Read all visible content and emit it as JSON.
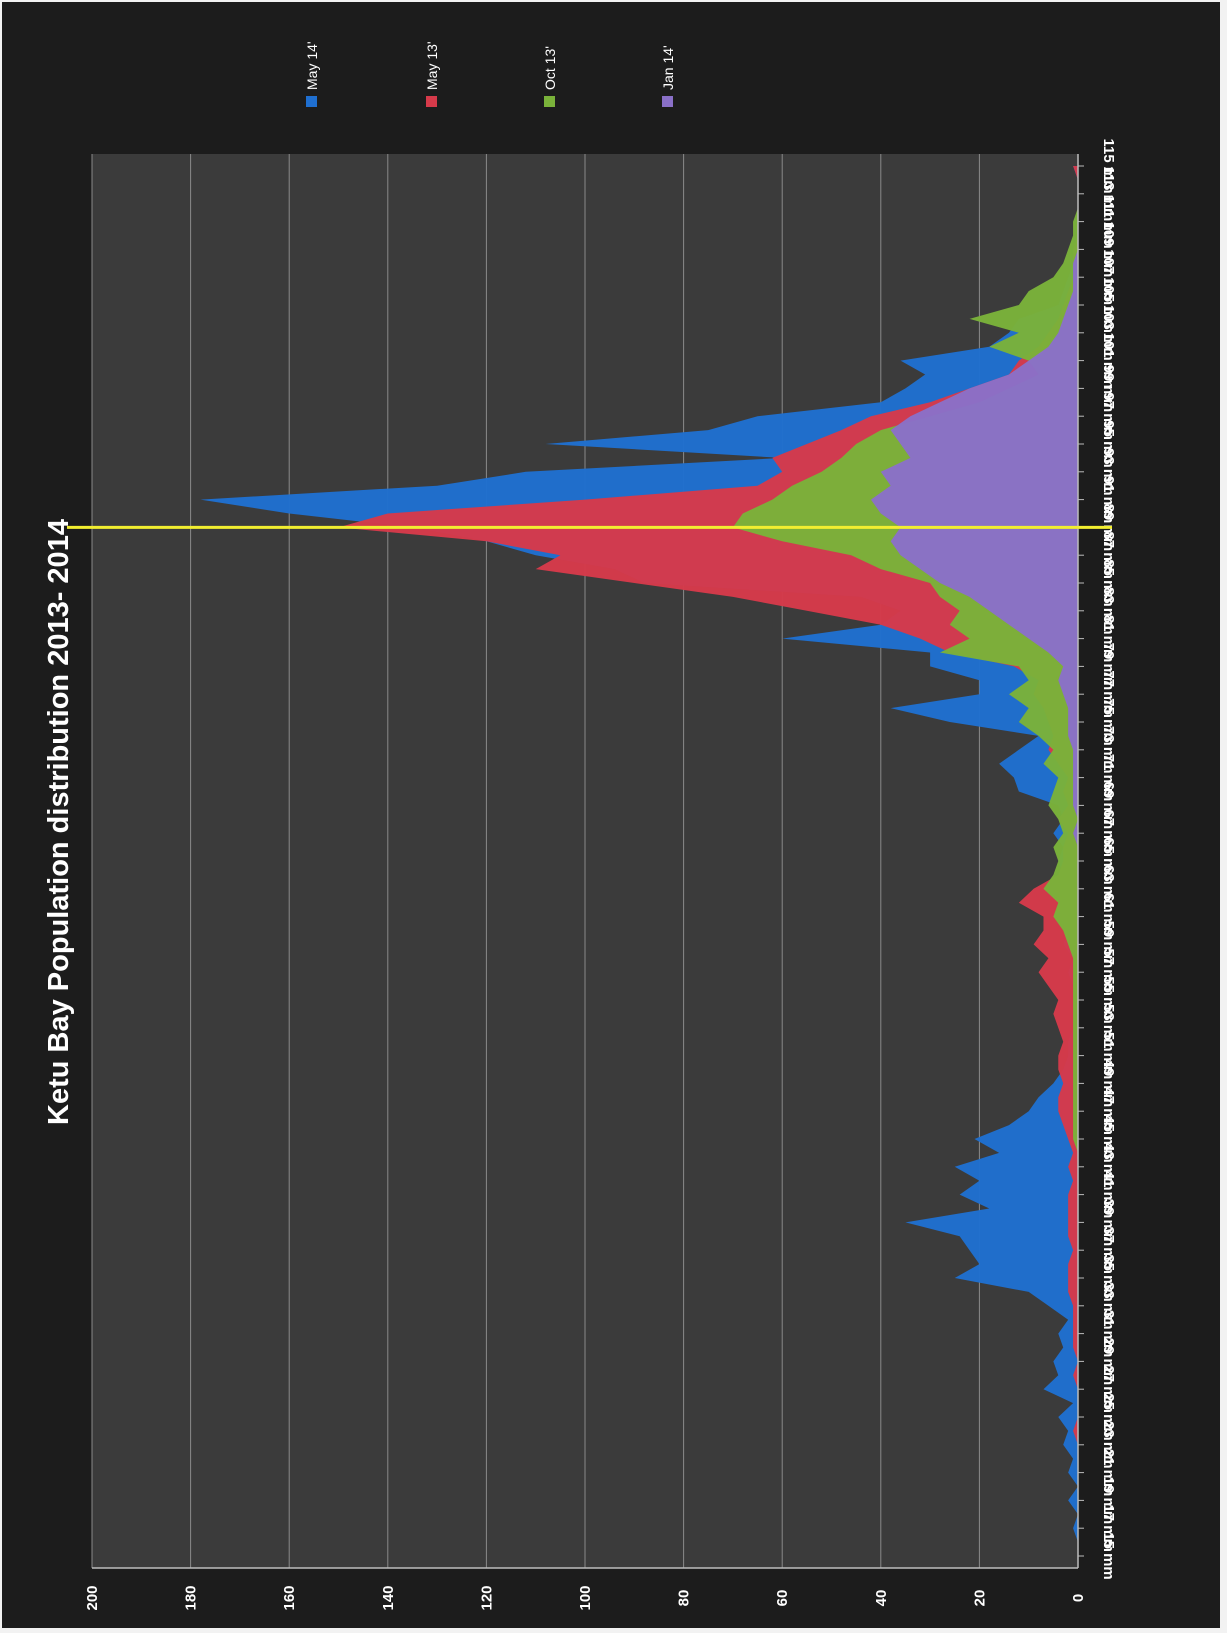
{
  "chart_data": {
    "type": "area",
    "title": "Ketu Bay Population distribution 2013- 2014",
    "orientation": "rotated-90-clockwise",
    "ylim": [
      0,
      200
    ],
    "yticks": [
      0,
      20,
      40,
      60,
      80,
      100,
      120,
      140,
      160,
      180,
      200
    ],
    "grid": true,
    "legend_position": "top",
    "categories": [
      "15 mm",
      "16 mm",
      "17 mm",
      "18 mm",
      "19 mm",
      "20 mm",
      "21 mm",
      "22 mm",
      "23 mm",
      "24 mm",
      "25 mm",
      "26 mm",
      "27 mm",
      "28 mm",
      "29 mm",
      "30 mm",
      "31 mm",
      "32 mm",
      "33 mm",
      "34 mm",
      "35 mm",
      "36 mm",
      "37 mm",
      "38 mm",
      "39 mm",
      "40 mm",
      "41 mm",
      "42 mm",
      "43 mm",
      "44 mm",
      "45 mm",
      "46 mm",
      "47 mm",
      "48 mm",
      "49 mm",
      "50 mm",
      "51 mm",
      "52 mm",
      "53 mm",
      "54 mm",
      "55 mm",
      "56 mm",
      "57 mm",
      "58 mm",
      "59 mm",
      "60 mm",
      "61 mm",
      "62 mm",
      "63 mm",
      "64 mm",
      "65 mm",
      "66 mm",
      "67 mm",
      "68 mm",
      "69 mm",
      "70 mm",
      "71 mm",
      "72 mm",
      "73 mm",
      "74 mm",
      "75 mm",
      "76 mm",
      "77 mm",
      "78 mm",
      "79 mm",
      "80 mm",
      "81 mm",
      "82 mm",
      "83 mm",
      "84 mm",
      "85 mm",
      "86 mm",
      "87 mm",
      "88 mm",
      "89 mm",
      "90 mm",
      "91 mm",
      "92 mm",
      "93 mm",
      "94 mm",
      "95 mm",
      "96 mm",
      "97 mm",
      "98 mm",
      "99 mm",
      "100 mm",
      "101 mm",
      "102 mm",
      "103 mm",
      "104 mm",
      "105 mm",
      "106 mm",
      "107 mm",
      "108 mm",
      "109 mm",
      "110 mm",
      "111 mm",
      "112 mm",
      "113 mm",
      "114 mm",
      "115 mm"
    ],
    "tick_labels": [
      "15 mm",
      "17 mm",
      "19 mm",
      "21 mm",
      "23 mm",
      "25 mm",
      "27 mm",
      "29 mm",
      "31 mm",
      "33 mm",
      "35 mm",
      "37 mm",
      "39 mm",
      "41 mm",
      "43 mm",
      "45 mm",
      "47 mm",
      "49 mm",
      "51 mm",
      "53 mm",
      "55 mm",
      "57 mm",
      "59 mm",
      "61 mm",
      "63 mm",
      "65 mm",
      "67 mm",
      "69 mm",
      "71 mm",
      "73 mm",
      "75 mm",
      "77 mm",
      "79 mm",
      "81 mm",
      "83 mm",
      "85 mm",
      "87 mm",
      "89 mm",
      "91 mm",
      "93 mm",
      "95 mm",
      "97 mm",
      "99 mm",
      "101 mm",
      "103 mm",
      "105 mm",
      "107 mm",
      "109 mm",
      "111 mm",
      "113 mm",
      "115 mm"
    ],
    "series": [
      {
        "name": "May 14'",
        "color": "#1f6fd0",
        "values": [
          0,
          0,
          1,
          0,
          2,
          0,
          2,
          1,
          3,
          2,
          4,
          1,
          7,
          4,
          5,
          3,
          4,
          2,
          6,
          10,
          25,
          20,
          22,
          24,
          35,
          18,
          24,
          20,
          25,
          16,
          21,
          14,
          10,
          8,
          5,
          3,
          2,
          2,
          1,
          1,
          1,
          1,
          2,
          1,
          3,
          2,
          2,
          3,
          3,
          3,
          4,
          3,
          5,
          3,
          4,
          12,
          13,
          16,
          12,
          8,
          26,
          38,
          20,
          20,
          30,
          30,
          60,
          40,
          36,
          44,
          88,
          94,
          110,
          120,
          135,
          160,
          178,
          130,
          112,
          60,
          108,
          75,
          65,
          40,
          35,
          31,
          36,
          18,
          14,
          12,
          4,
          3,
          2,
          1,
          1,
          0,
          0,
          0,
          0,
          0,
          1
        ]
      },
      {
        "name": "May 13'",
        "color": "#d63a4a",
        "values": [
          0,
          0,
          0,
          0,
          0,
          0,
          0,
          0,
          0,
          1,
          0,
          0,
          0,
          1,
          0,
          1,
          1,
          1,
          1,
          2,
          2,
          2,
          1,
          2,
          2,
          2,
          2,
          1,
          2,
          1,
          2,
          3,
          4,
          4,
          3,
          4,
          4,
          3,
          4,
          5,
          4,
          6,
          8,
          6,
          9,
          7,
          7,
          12,
          9,
          4,
          3,
          3,
          2,
          4,
          2,
          3,
          2,
          4,
          6,
          5,
          6,
          7,
          9,
          8,
          13,
          26,
          32,
          40,
          55,
          70,
          90,
          110,
          105,
          120,
          150,
          140,
          100,
          65,
          60,
          62,
          55,
          48,
          42,
          30,
          22,
          14,
          12,
          8,
          6,
          4,
          3,
          2,
          1,
          1,
          1,
          0,
          0,
          0,
          0,
          0,
          1
        ]
      },
      {
        "name": "Oct 13'",
        "color": "#7ab23a",
        "values": [
          0,
          0,
          0,
          0,
          0,
          0,
          0,
          0,
          0,
          0,
          0,
          0,
          0,
          0,
          0,
          0,
          0,
          0,
          0,
          0,
          0,
          0,
          0,
          0,
          0,
          0,
          0,
          0,
          0,
          0,
          1,
          1,
          1,
          1,
          1,
          1,
          1,
          1,
          1,
          1,
          1,
          1,
          1,
          1,
          2,
          3,
          5,
          4,
          7,
          5,
          4,
          5,
          3,
          4,
          6,
          5,
          4,
          7,
          5,
          8,
          12,
          10,
          14,
          10,
          12,
          28,
          22,
          26,
          24,
          28,
          30,
          40,
          46,
          60,
          70,
          68,
          62,
          58,
          52,
          48,
          45,
          40,
          30,
          20,
          14,
          8,
          10,
          18,
          12,
          22,
          12,
          10,
          5,
          3,
          2,
          1,
          1,
          0,
          0,
          0,
          0
        ]
      },
      {
        "name": "Jan 14'",
        "color": "#8a70c8",
        "values": [
          0,
          0,
          0,
          0,
          0,
          0,
          0,
          0,
          0,
          0,
          0,
          0,
          0,
          0,
          0,
          0,
          0,
          0,
          0,
          0,
          0,
          0,
          0,
          0,
          0,
          0,
          0,
          0,
          0,
          0,
          0,
          0,
          0,
          0,
          0,
          0,
          0,
          0,
          0,
          0,
          0,
          0,
          0,
          0,
          0,
          0,
          0,
          0,
          0,
          0,
          0,
          0,
          1,
          0,
          1,
          1,
          1,
          1,
          1,
          2,
          2,
          2,
          3,
          4,
          3,
          6,
          10,
          14,
          18,
          22,
          28,
          32,
          36,
          38,
          36,
          40,
          42,
          38,
          40,
          34,
          36,
          38,
          34,
          28,
          22,
          14,
          10,
          6,
          4,
          3,
          2,
          1,
          1,
          1,
          0,
          0,
          0,
          0,
          0,
          0,
          0
        ]
      }
    ],
    "marker_line": {
      "color": "#f2ee30",
      "at_category": "89 mm"
    }
  }
}
